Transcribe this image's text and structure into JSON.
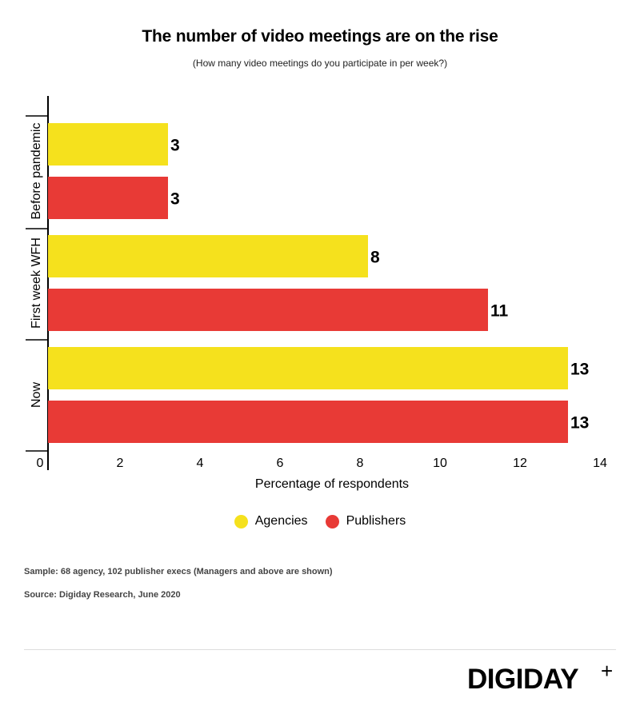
{
  "chart_data": {
    "type": "bar",
    "orientation": "horizontal",
    "title": "The number of video meetings are on the rise",
    "subtitle": "(How many video meetings do you participate in per week?)",
    "xlabel": "Percentage of respondents",
    "ylabel": "",
    "xlim": [
      0,
      14
    ],
    "xticks": [
      0,
      2,
      4,
      6,
      8,
      10,
      12,
      14
    ],
    "categories": [
      "Before pandemic",
      "First week WFH",
      "Now"
    ],
    "series": [
      {
        "name": "Agencies",
        "color": "#f5e11d",
        "values": [
          3,
          8,
          13
        ]
      },
      {
        "name": "Publishers",
        "color": "#e83a36",
        "values": [
          3,
          11,
          13
        ]
      }
    ],
    "legend_position": "bottom-center",
    "grid": false
  },
  "notes": {
    "sample": "Sample: 68 agency, 102 publisher execs (Managers and above are shown)",
    "source": "Source: Digiday Research, June 2020"
  },
  "brand": {
    "name": "DIGIDAY",
    "plus": "+"
  }
}
